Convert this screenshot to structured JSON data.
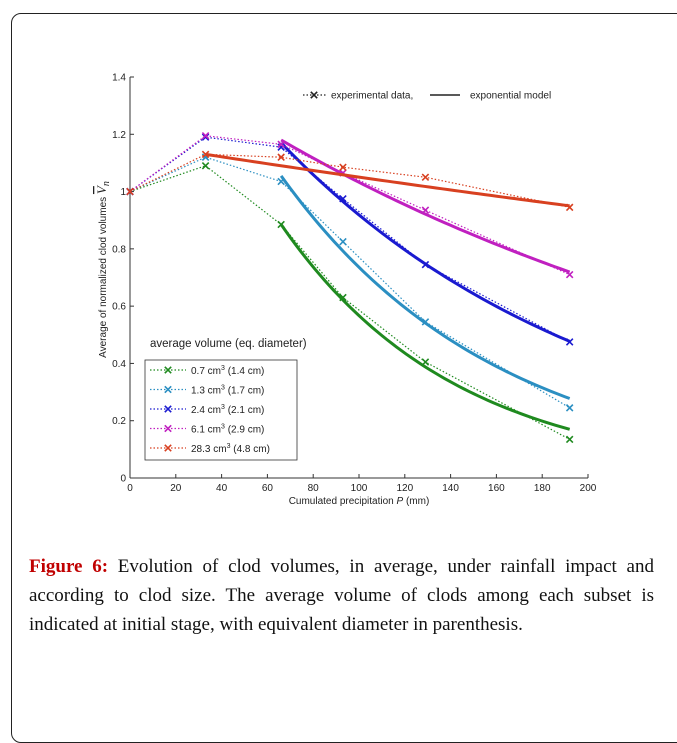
{
  "chart_data": {
    "type": "line",
    "xlabel_prefix": "Cumulated precipitation ",
    "xlabel_var": "P",
    "xlabel_suffix": " (mm)",
    "ylabel": "Average of normalized clod volumes",
    "ylabel_symbol": "V",
    "ylabel_subscript": "n",
    "xlim": [
      0,
      200
    ],
    "ylim": [
      0,
      1.4
    ],
    "xticks": [
      0,
      20,
      40,
      60,
      80,
      100,
      120,
      140,
      160,
      180,
      200
    ],
    "yticks": [
      0,
      0.2,
      0.4,
      0.6,
      0.8,
      1,
      1.2,
      1.4
    ],
    "ytick_labels": [
      "0",
      "0.2",
      "0.4",
      "0.6",
      "0.8",
      "1",
      "1.2",
      "1.4"
    ],
    "legend_top": {
      "experimental_label": "experimental data,",
      "model_label": "exponential model",
      "placement": "top-right"
    },
    "legend_series_title": "average volume (eq. diameter)",
    "series": [
      {
        "name": "0.7 cm3 (1.4 cm)",
        "vol": "0.7 cm",
        "dia": " (1.4 cm)",
        "color": "#1f8a1f",
        "experimental": {
          "x": [
            0,
            33,
            66,
            93,
            129,
            192
          ],
          "y": [
            1.0,
            1.09,
            0.885,
            0.63,
            0.405,
            0.135
          ]
        },
        "model": {
          "x0": 66,
          "x1": 192,
          "y0": 0.885,
          "k": 0.0131
        }
      },
      {
        "name": "1.3 cm3 (1.7 cm)",
        "vol": "1.3 cm",
        "dia": " (1.7 cm)",
        "color": "#2b8fc2",
        "experimental": {
          "x": [
            0,
            33,
            66,
            93,
            129,
            192
          ],
          "y": [
            1.0,
            1.12,
            1.035,
            0.825,
            0.545,
            0.245
          ]
        },
        "model": {
          "x0": 66,
          "x1": 192,
          "y0": 1.055,
          "k": 0.0106
        }
      },
      {
        "name": "2.4 cm3 (2.1 cm)",
        "vol": "2.4 cm",
        "dia": " (2.1 cm)",
        "color": "#1a1ad0",
        "experimental": {
          "x": [
            0,
            33,
            66,
            93,
            129,
            192
          ],
          "y": [
            1.0,
            1.19,
            1.155,
            0.975,
            0.745,
            0.475
          ]
        },
        "model": {
          "x0": 66,
          "x1": 192,
          "y0": 1.17,
          "k": 0.00712
        }
      },
      {
        "name": "6.1 cm3 (2.9 cm)",
        "vol": "6.1 cm",
        "dia": " (2.9 cm)",
        "color": "#c020c0",
        "experimental": {
          "x": [
            0,
            33,
            66,
            93,
            129,
            192
          ],
          "y": [
            1.0,
            1.195,
            1.165,
            1.065,
            0.935,
            0.71
          ]
        },
        "model": {
          "x0": 66,
          "x1": 192,
          "y0": 1.18,
          "k": 0.00393
        }
      },
      {
        "name": "28.3 cm3 (4.8 cm)",
        "vol": "28.3 cm",
        "dia": " (4.8 cm)",
        "color": "#d84020",
        "experimental": {
          "x": [
            0,
            33,
            66,
            93,
            129,
            192
          ],
          "y": [
            1.0,
            1.13,
            1.12,
            1.085,
            1.05,
            0.945
          ]
        },
        "model": {
          "x0": 33,
          "x1": 192,
          "y0": 1.13,
          "k": 0.00109
        }
      }
    ]
  },
  "caption": {
    "label": "Figure 6:",
    "text": " Evolution of clod volumes, in average, under rainfall impact and according to clod size. The average volume of clods among each subset is indicated at initial stage, with equivalent diameter in parenthesis."
  }
}
